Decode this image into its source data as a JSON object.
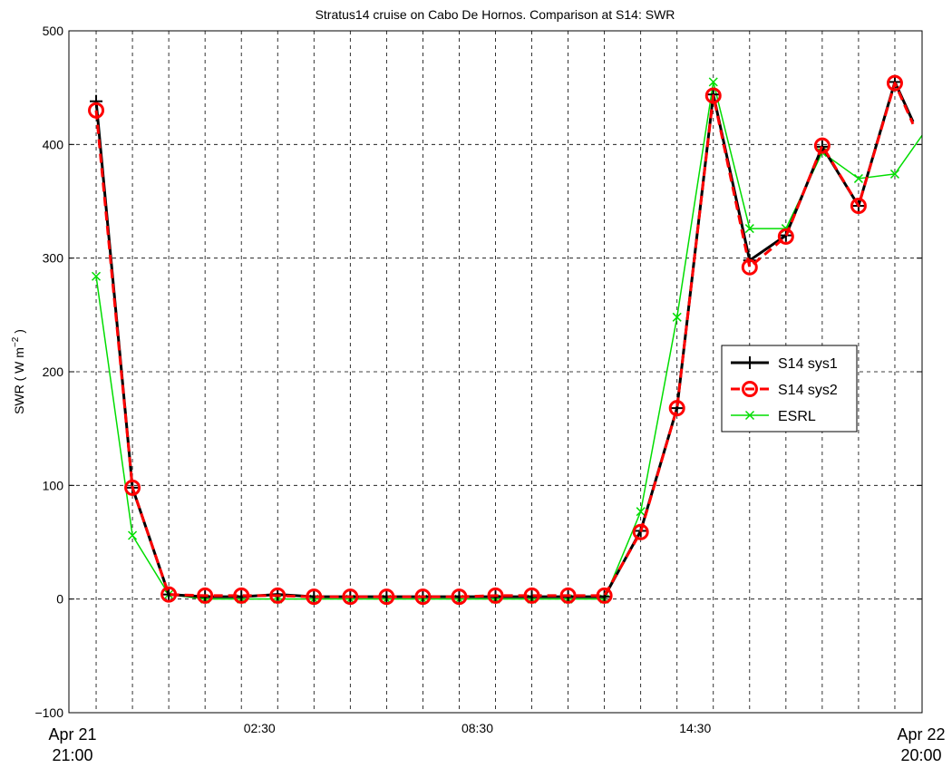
{
  "chart_data": {
    "type": "line",
    "title": "Stratus14 cruise on Cabo De Hornos. Comparison at S14: SWR",
    "ylabel": "SWR ( W m",
    "ylabel_sup": "−2",
    "ylabel_end": " )",
    "ylim": [
      -100,
      500
    ],
    "yticks": [
      -100,
      0,
      100,
      200,
      300,
      400,
      500
    ],
    "x_unit": "hours after Apr 21 21:00",
    "xlim": [
      -0.75,
      22.75
    ],
    "x_gridlines": [
      0,
      1,
      2,
      3,
      4,
      5,
      6,
      7,
      8,
      9,
      10,
      11,
      12,
      13,
      14,
      15,
      16,
      17,
      18,
      19,
      20,
      21,
      22
    ],
    "xtick_labels": [
      {
        "x": 4.5,
        "label": "02:30"
      },
      {
        "x": 10.5,
        "label": "08:30"
      },
      {
        "x": 16.5,
        "label": "14:30"
      }
    ],
    "start_label": [
      "Apr 21",
      "21:00"
    ],
    "end_label": [
      "Apr 22",
      "20:00"
    ],
    "grid": true,
    "legend_position": "center-right",
    "series": [
      {
        "name": "S14 sys1",
        "color": "#000000",
        "style": "solid",
        "marker": "plus",
        "x": [
          0,
          1,
          2,
          3,
          4,
          5,
          6,
          7,
          8,
          9,
          10,
          11,
          12,
          13,
          14,
          15,
          16,
          17,
          18,
          19,
          20,
          21,
          22,
          22.5
        ],
        "values": [
          438,
          98,
          4,
          2,
          2,
          4,
          2,
          2,
          2,
          2,
          2,
          2,
          2,
          2,
          2,
          60,
          168,
          444,
          298,
          320,
          398,
          346,
          455,
          420
        ]
      },
      {
        "name": "S14 sys2",
        "color": "#ff0000",
        "style": "dashed",
        "marker": "circle",
        "x": [
          0,
          1,
          2,
          3,
          4,
          5,
          6,
          7,
          8,
          9,
          10,
          11,
          12,
          13,
          14,
          15,
          16,
          17,
          18,
          19,
          20,
          21,
          22,
          22.5
        ],
        "values": [
          430,
          98,
          4,
          3,
          3,
          3,
          2,
          2,
          2,
          2,
          2,
          3,
          3,
          3,
          3,
          59,
          168,
          443,
          292,
          319,
          399,
          346,
          454,
          418
        ]
      },
      {
        "name": "ESRL",
        "color": "#00dd00",
        "style": "solid",
        "marker": "x",
        "x": [
          0,
          1,
          2,
          3,
          4,
          5,
          6,
          7,
          8,
          9,
          10,
          11,
          12,
          13,
          14,
          15,
          16,
          17,
          18,
          19,
          20,
          21,
          22,
          22.75
        ],
        "values": [
          284,
          56,
          4,
          0,
          0,
          0,
          0,
          0,
          0,
          0,
          0,
          0,
          0,
          0,
          0,
          77,
          248,
          455,
          326,
          326,
          393,
          370,
          374,
          408
        ]
      }
    ]
  }
}
